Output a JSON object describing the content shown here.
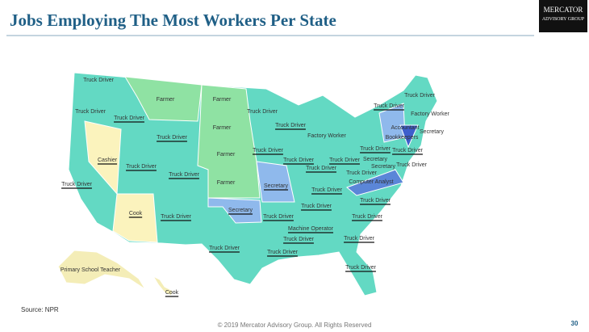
{
  "header": {
    "title": "Jobs Employing The Most Workers Per State"
  },
  "logo": {
    "name": "Mercator",
    "subname": "Advisory Group"
  },
  "map": {
    "labels": [
      "Truck Driver",
      "Truck Driver",
      "Truck Driver",
      "Farmer",
      "Farmer",
      "Farmer",
      "Truck Driver",
      "Farmer",
      "Farmer",
      "Truck Driver",
      "Truck Driver",
      "Factory Worker",
      "Truck Driver",
      "Truck Driver",
      "Truck Driver",
      "Truck Driver",
      "Truck Driver",
      "Truck Driver",
      "Truck Driver",
      "Factory Worker",
      "Secretary",
      "Accountant",
      "Bookkeepers",
      "Truck Driver",
      "Secretary",
      "Secretary",
      "Truck Driver",
      "Truck Driver",
      "Computer Analyst",
      "Cashier",
      "Truck Driver",
      "Truck Driver",
      "Truck Driver",
      "Secretary",
      "Truck Driver",
      "Truck Driver",
      "Truck Driver",
      "Truck Driver",
      "Cook",
      "Truck Driver",
      "Secretary",
      "Truck Driver",
      "Machine Operator",
      "Truck Driver",
      "Truck Driver",
      "Truck Driver",
      "Truck Driver",
      "Truck Driver",
      "Primary School Teacher",
      "Cook"
    ]
  },
  "source": "Source: NPR",
  "footer": "© 2019 Mercator Advisory Group. All Rights Reserved",
  "page_number": "30"
}
